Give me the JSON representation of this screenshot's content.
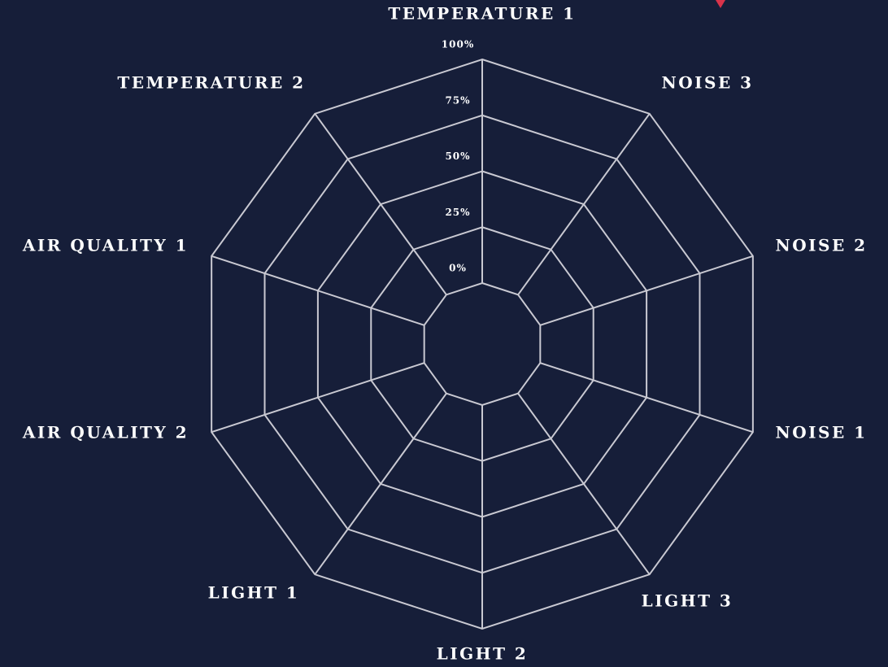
{
  "chart_data": {
    "type": "radar",
    "categories": [
      "TEMPERATURE 1",
      "NOISE 3",
      "NOISE 2",
      "NOISE 1",
      "LIGHT 3",
      "LIGHT 2",
      "LIGHT 1",
      "AIR QUALITY 2",
      "AIR QUALITY 1",
      "TEMPERATURE 2"
    ],
    "ylim": [
      0,
      100
    ],
    "yticks": [
      {
        "value": 0,
        "label": "0%"
      },
      {
        "value": 25,
        "label": "25%"
      },
      {
        "value": 50,
        "label": "50%"
      },
      {
        "value": 75,
        "label": "75%"
      },
      {
        "value": 100,
        "label": "100%"
      }
    ],
    "grid": true
  }
}
